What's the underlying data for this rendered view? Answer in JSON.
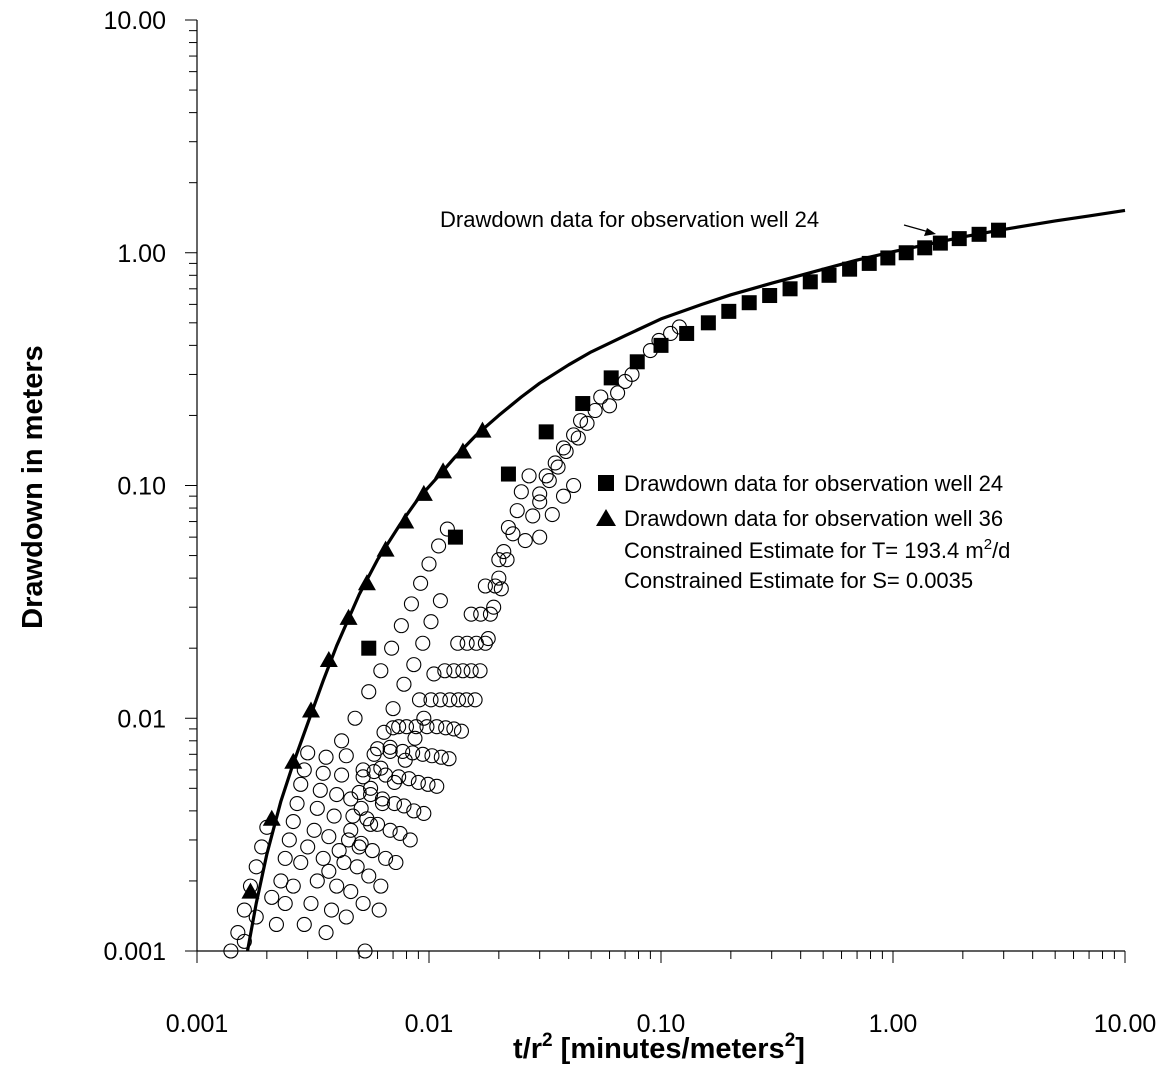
{
  "chart_data": {
    "type": "scatter",
    "x_scale": "log",
    "y_scale": "log",
    "xlim": [
      0.001,
      10
    ],
    "ylim": [
      0.001,
      10
    ],
    "grid": false,
    "xlabel": {
      "main": "t/r",
      "sup1": "2",
      "mid": " [minutes/meters",
      "sup2": "2",
      "end": "]"
    },
    "ylabel": "Drawdown in meters",
    "x_ticks": [
      {
        "value": 0.001,
        "label": "0.001"
      },
      {
        "value": 0.01,
        "label": "0.01"
      },
      {
        "value": 0.1,
        "label": "0.10"
      },
      {
        "value": 1,
        "label": "1.00"
      },
      {
        "value": 10,
        "label": "10.00"
      }
    ],
    "y_ticks": [
      {
        "value": 0.001,
        "label": "0.001"
      },
      {
        "value": 0.01,
        "label": "0.01"
      },
      {
        "value": 0.1,
        "label": "0.10"
      },
      {
        "value": 1,
        "label": "1.00"
      },
      {
        "value": 10,
        "label": "10.00"
      }
    ],
    "legend": {
      "placement": "right-middle",
      "items": [
        {
          "marker": "square",
          "text": "Drawdown data for observation well 24"
        },
        {
          "marker": "triangle",
          "text": "Drawdown data for observation well 36"
        },
        {
          "marker": "none",
          "text": "Constrained Estimate for T= 193.4 m",
          "sup": "2",
          "text_after": "/d"
        },
        {
          "marker": "none",
          "text": "Constrained Estimate for S= 0.0035"
        }
      ]
    },
    "annotation": {
      "text": "Drawdown data for observation well 24",
      "arrow_to": [
        1.45,
        1.07
      ]
    },
    "type_curve": {
      "x": [
        0.00165,
        0.0018,
        0.002,
        0.0023,
        0.0026,
        0.003,
        0.0035,
        0.004,
        0.005,
        0.006,
        0.0075,
        0.009,
        0.011,
        0.013,
        0.016,
        0.02,
        0.025,
        0.03,
        0.04,
        0.05,
        0.07,
        0.1,
        0.15,
        0.2,
        0.3,
        0.5,
        0.7,
        1,
        1.5,
        2,
        3,
        5,
        7,
        10
      ],
      "y": [
        0.001,
        0.0016,
        0.0026,
        0.0044,
        0.0064,
        0.0095,
        0.0145,
        0.0205,
        0.034,
        0.048,
        0.068,
        0.088,
        0.11,
        0.133,
        0.165,
        0.2,
        0.24,
        0.275,
        0.33,
        0.375,
        0.44,
        0.52,
        0.6,
        0.66,
        0.74,
        0.85,
        0.93,
        1.01,
        1.1,
        1.17,
        1.26,
        1.37,
        1.44,
        1.52
      ]
    },
    "series": [
      {
        "name": "Drawdown data for observation well 24",
        "marker": "square",
        "color": "#000000",
        "x": [
          0.0055,
          0.013,
          0.022,
          0.032,
          0.046,
          0.061,
          0.079,
          0.1,
          0.129,
          0.16,
          0.196,
          0.24,
          0.294,
          0.36,
          0.44,
          0.53,
          0.65,
          0.79,
          0.95,
          1.14,
          1.37,
          1.6,
          1.93,
          2.35,
          2.85
        ],
        "y": [
          0.02,
          0.06,
          0.112,
          0.17,
          0.225,
          0.29,
          0.34,
          0.4,
          0.45,
          0.5,
          0.56,
          0.61,
          0.655,
          0.7,
          0.75,
          0.8,
          0.85,
          0.9,
          0.95,
          1.0,
          1.05,
          1.1,
          1.15,
          1.2,
          1.25
        ]
      },
      {
        "name": "Drawdown data for observation well 36",
        "marker": "triangle",
        "color": "#000000",
        "x": [
          0.0017,
          0.0021,
          0.0026,
          0.0031,
          0.0037,
          0.0045,
          0.0054,
          0.0065,
          0.0079,
          0.0095,
          0.0115,
          0.014,
          0.017
        ],
        "y": [
          0.0018,
          0.0037,
          0.0065,
          0.0108,
          0.0178,
          0.027,
          0.038,
          0.053,
          0.07,
          0.092,
          0.115,
          0.14,
          0.172
        ]
      },
      {
        "name": "",
        "marker": "open-circle",
        "color": "#000000",
        "note_points": "other observation wells",
        "x": [
          0.0014,
          0.0015,
          0.0016,
          0.0017,
          0.0018,
          0.0019,
          0.002,
          0.0016,
          0.0018,
          0.0021,
          0.0023,
          0.0024,
          0.0022,
          0.0025,
          0.0026,
          0.0027,
          0.0028,
          0.0029,
          0.003,
          0.0024,
          0.0026,
          0.0028,
          0.003,
          0.0032,
          0.0033,
          0.0034,
          0.0035,
          0.0036,
          0.0029,
          0.0031,
          0.0033,
          0.0035,
          0.0037,
          0.0039,
          0.004,
          0.0042,
          0.0044,
          0.0036,
          0.0038,
          0.004,
          0.0043,
          0.0045,
          0.0047,
          0.005,
          0.0052,
          0.0044,
          0.0046,
          0.0049,
          0.0051,
          0.0054,
          0.0056,
          0.0058,
          0.006,
          0.0052,
          0.0055,
          0.0057,
          0.006,
          0.0063,
          0.0065,
          0.0068,
          0.007,
          0.0062,
          0.0065,
          0.0068,
          0.0071,
          0.0074,
          0.0077,
          0.008,
          0.0072,
          0.0075,
          0.0078,
          0.0082,
          0.0085,
          0.0088,
          0.0091,
          0.0083,
          0.0086,
          0.009,
          0.0094,
          0.0098,
          0.0102,
          0.0105,
          0.0095,
          0.0099,
          0.0103,
          0.0108,
          0.0112,
          0.0117,
          0.0108,
          0.0113,
          0.0118,
          0.0123,
          0.0128,
          0.0133,
          0.0122,
          0.0128,
          0.0134,
          0.014,
          0.0146,
          0.0152,
          0.0138,
          0.0145,
          0.0152,
          0.016,
          0.0167,
          0.0175,
          0.0158,
          0.0166,
          0.0175,
          0.0184,
          0.0193,
          0.02,
          0.018,
          0.019,
          0.02,
          0.021,
          0.022,
          0.0205,
          0.0217,
          0.023,
          0.024,
          0.025,
          0.027,
          0.026,
          0.028,
          0.03,
          0.032,
          0.03,
          0.033,
          0.035,
          0.038,
          0.036,
          0.039,
          0.042,
          0.045,
          0.044,
          0.048,
          0.052,
          0.055,
          0.06,
          0.065,
          0.07,
          0.075,
          0.09,
          0.098,
          0.11,
          0.12,
          0.03,
          0.034,
          0.038,
          0.042,
          0.0042,
          0.0048,
          0.0055,
          0.0062,
          0.0069,
          0.0076,
          0.0084,
          0.0092,
          0.01,
          0.011,
          0.012,
          0.0046,
          0.0052,
          0.0058,
          0.0064,
          0.007,
          0.0078,
          0.0086,
          0.0094,
          0.0102,
          0.0112,
          0.005,
          0.0056,
          0.0063,
          0.0071,
          0.0079,
          0.0087,
          0.0095,
          0.0037,
          0.0041,
          0.0046,
          0.0051,
          0.0056,
          0.0062,
          0.0068,
          0.0074,
          0.0053,
          0.0061
        ],
        "y": [
          0.001,
          0.0012,
          0.0015,
          0.0019,
          0.0023,
          0.0028,
          0.0034,
          0.0011,
          0.0014,
          0.0017,
          0.002,
          0.0025,
          0.0013,
          0.003,
          0.0036,
          0.0043,
          0.0052,
          0.006,
          0.0071,
          0.0016,
          0.0019,
          0.0024,
          0.0028,
          0.0033,
          0.0041,
          0.0049,
          0.0058,
          0.0068,
          0.0013,
          0.0016,
          0.002,
          0.0025,
          0.0031,
          0.0038,
          0.0047,
          0.0057,
          0.0069,
          0.0012,
          0.0015,
          0.0019,
          0.0024,
          0.003,
          0.0038,
          0.0048,
          0.006,
          0.0014,
          0.0018,
          0.0023,
          0.0029,
          0.0037,
          0.0047,
          0.0059,
          0.0074,
          0.0016,
          0.0021,
          0.0027,
          0.0035,
          0.0045,
          0.0057,
          0.0072,
          0.0091,
          0.0019,
          0.0025,
          0.0033,
          0.0043,
          0.0056,
          0.0072,
          0.0092,
          0.0024,
          0.0032,
          0.0042,
          0.0055,
          0.0071,
          0.0092,
          0.012,
          0.003,
          0.004,
          0.0053,
          0.007,
          0.0092,
          0.012,
          0.0155,
          0.0039,
          0.0052,
          0.0069,
          0.0092,
          0.012,
          0.016,
          0.0051,
          0.0068,
          0.0091,
          0.012,
          0.016,
          0.021,
          0.0067,
          0.009,
          0.012,
          0.016,
          0.021,
          0.028,
          0.0088,
          0.012,
          0.016,
          0.021,
          0.028,
          0.037,
          0.012,
          0.016,
          0.021,
          0.028,
          0.037,
          0.048,
          0.022,
          0.03,
          0.04,
          0.052,
          0.066,
          0.036,
          0.048,
          0.062,
          0.078,
          0.094,
          0.11,
          0.058,
          0.074,
          0.092,
          0.11,
          0.085,
          0.105,
          0.125,
          0.145,
          0.12,
          0.14,
          0.165,
          0.19,
          0.16,
          0.185,
          0.21,
          0.24,
          0.22,
          0.25,
          0.28,
          0.3,
          0.38,
          0.42,
          0.45,
          0.48,
          0.06,
          0.075,
          0.09,
          0.1,
          0.008,
          0.01,
          0.013,
          0.016,
          0.02,
          0.025,
          0.031,
          0.038,
          0.046,
          0.055,
          0.065,
          0.0045,
          0.0056,
          0.007,
          0.0087,
          0.011,
          0.014,
          0.017,
          0.021,
          0.026,
          0.032,
          0.0028,
          0.0035,
          0.0043,
          0.0053,
          0.0066,
          0.0082,
          0.01,
          0.0022,
          0.0027,
          0.0033,
          0.0041,
          0.005,
          0.0061,
          0.0075,
          0.0092,
          0.001,
          0.0015
        ]
      }
    ]
  }
}
